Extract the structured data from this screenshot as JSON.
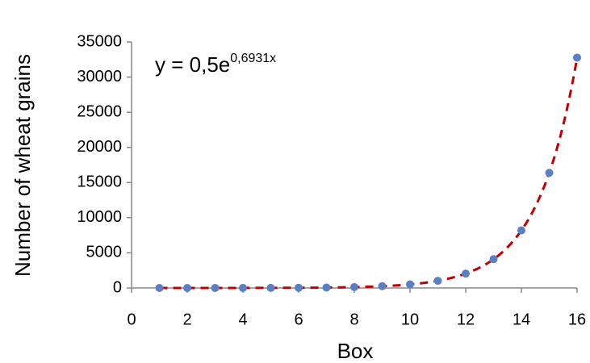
{
  "chart_data": {
    "type": "scatter",
    "x_label": "Box",
    "y_label": "Number of wheat grains",
    "x": [
      1,
      2,
      3,
      4,
      5,
      6,
      7,
      8,
      9,
      10,
      11,
      12,
      13,
      14,
      15,
      16
    ],
    "series": [
      {
        "color": "#5b7fc4",
        "values": [
          1,
          2,
          4,
          8,
          16,
          32,
          64,
          128,
          256,
          512,
          1024,
          2048,
          4096,
          8192,
          16384,
          32768
        ]
      }
    ],
    "trendline": {
      "a": 0.5,
      "b": 0.6931,
      "color": "#c00000",
      "text": "y = 0,5e",
      "superscript": "0,6931x"
    },
    "xlim": [
      0,
      16
    ],
    "xticks": [
      0,
      2,
      4,
      6,
      8,
      10,
      12,
      14,
      16
    ],
    "ylim": [
      0,
      35000
    ],
    "yticks": [
      0,
      5000,
      10000,
      15000,
      20000,
      25000,
      30000,
      35000
    ],
    "grid": false
  }
}
